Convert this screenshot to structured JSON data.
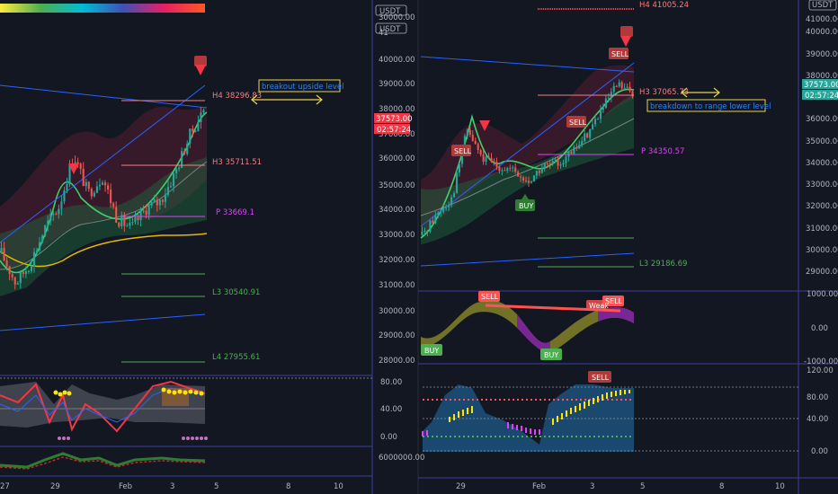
{
  "colors": {
    "background": "#131722",
    "separator": "#3b3fa0",
    "bull": "#26a69a",
    "bear": "#ef5350",
    "trendline": "#2962ff",
    "annotation_box": "#e8d44d",
    "annotation_text": "#2f80ed",
    "sell_label": "#b03a3a",
    "buy_label": "#2e7d32",
    "price_tag": "#f23645",
    "price_tag_green": "#26a69a"
  },
  "left_chart": {
    "currency_badge_top": "USDT",
    "currency_badge": "USDT",
    "price_axis": [
      "30000.00",
      "41",
      "40000.00",
      "39000.00",
      "38000.00",
      "37000.00",
      "36000.00",
      "35000.00",
      "34000.00",
      "33000.00",
      "32000.00",
      "31000.00",
      "30000.00",
      "29000.00",
      "28000.00"
    ],
    "current_price": "37573.00",
    "countdown": "02:57:24",
    "levels": [
      {
        "label": "H4 38296.83",
        "color": "#f77c80"
      },
      {
        "label": "H3 35711.51",
        "color": "#f77c80"
      },
      {
        "label": "P 33669.1",
        "color": "#e040fb"
      },
      {
        "label": "L3 30540.91",
        "color": "#4caf50"
      },
      {
        "label": "L4 27955.61",
        "color": "#4caf50"
      }
    ],
    "annotation": "breakout upside level",
    "osc_axis": [
      "80.00",
      "40.00",
      "0.00"
    ],
    "vol_axis": [
      "6000000.00"
    ],
    "time_axis": [
      "27",
      "29",
      "Feb",
      "3",
      "5",
      "8",
      "10"
    ]
  },
  "right_chart": {
    "currency_badge": "USDT",
    "price_axis": [
      "41000.00",
      "40000.00",
      "39000.00",
      "38000.00",
      "37000.00",
      "36000.00",
      "35000.00",
      "34000.00",
      "33000.00",
      "32000.00",
      "31000.00",
      "30000.00",
      "29000.00"
    ],
    "current_price": "37573.00",
    "countdown": "02:57:24",
    "levels": [
      {
        "label": "H4 41005.24",
        "color": "#f77c80"
      },
      {
        "label": "H3 37065.73",
        "color": "#f77c80"
      },
      {
        "label": "P 34350.57",
        "color": "#e040fb"
      },
      {
        "label": "L3 29186.69",
        "color": "#4caf50"
      }
    ],
    "annotation": "breakdown to range lower level",
    "signals": {
      "sell": "SELL",
      "buy": "BUY",
      "weak": "Weak"
    },
    "osc1_axis": [
      "1000.00",
      "0.00",
      "-1000.00"
    ],
    "osc2_axis": [
      "120.00",
      "80.00",
      "40.00",
      "0.00"
    ],
    "time_axis": [
      "29",
      "Feb",
      "3",
      "5",
      "8",
      "10"
    ]
  },
  "chart_data": [
    {
      "type": "candlestick",
      "title": "",
      "xlabel": "",
      "ylabel": "",
      "ylim": [
        27500,
        41200
      ],
      "x_ticks": [
        "27",
        "29",
        "Feb",
        "3",
        "5",
        "8",
        "10"
      ],
      "close_approx": [
        31800,
        30600,
        31400,
        32800,
        33700,
        35800,
        34200,
        34900,
        33200,
        32800,
        33600,
        33900,
        35000,
        36500,
        37573
      ],
      "pivot_levels": {
        "H4": 38296.83,
        "H3": 35711.51,
        "P": 33669.1,
        "L3": 30540.91,
        "L4": 27955.61
      },
      "last_price": 37573.0
    },
    {
      "type": "candlestick",
      "title": "",
      "xlabel": "",
      "ylabel": "",
      "ylim": [
        28700,
        41300
      ],
      "x_ticks": [
        "29",
        "Feb",
        "3",
        "5",
        "8",
        "10"
      ],
      "close_approx": [
        30500,
        31600,
        32400,
        35800,
        34300,
        34000,
        33700,
        33100,
        33900,
        34100,
        34600,
        35600,
        36800,
        38000,
        37573
      ],
      "pivot_levels": {
        "H4": 41005.24,
        "H3": 37065.73,
        "P": 34350.57,
        "L3": 29186.69
      },
      "last_price": 37573.0
    }
  ]
}
